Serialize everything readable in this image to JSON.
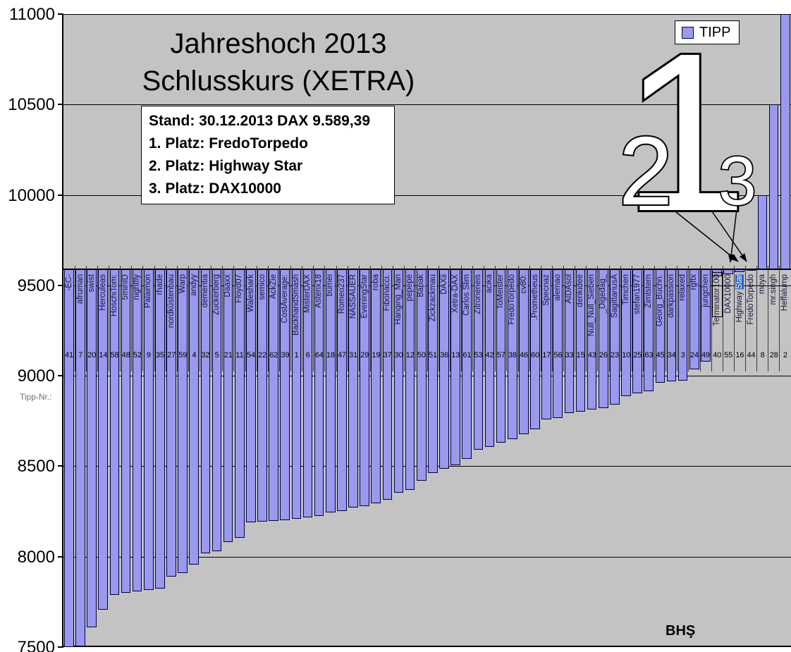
{
  "title": {
    "line1": "Jahreshoch 2013",
    "line2": "Schlusskurs (XETRA)"
  },
  "info_box": {
    "stand": "Stand: 30.12.2013 DAX 9.589,39",
    "platz1": "1. Platz: FredoTorpedo",
    "platz2": "2. Platz: Highway Star",
    "platz3": "3. Platz: DAX10000"
  },
  "legend": {
    "label": "TIPP"
  },
  "left_axis_note": "Tipp-Nr.:",
  "signature": "BHŞ",
  "overlay": {
    "rank1": "1",
    "rank2": "2",
    "rank3": "3"
  },
  "colors": {
    "plot_bg": "#C3C3C3",
    "bar_fill": "#9999EE",
    "bar_border": "#000040",
    "selection_blue": "#3163C5"
  },
  "chart_data": {
    "type": "bar",
    "title": "Jahreshoch 2013 Schlusskurs (XETRA)",
    "ylabel": "",
    "xlabel": "Tipp-Nr.:",
    "ylim": [
      7500,
      11000
    ],
    "yticks": [
      7500,
      8000,
      8500,
      9000,
      9500,
      10000,
      10500,
      11000
    ],
    "baseline_value": 9589.39,
    "grid": "horizontal",
    "legend_entries": [
      "TIPP"
    ],
    "legend_position": "top-right",
    "value_note": "values estimated from bar ends; bars hang from the 9589.39 axis crossing",
    "bars": [
      {
        "label": "-EC-",
        "tipp_nr": 41,
        "value": 7500
      },
      {
        "label": "afruman",
        "tipp_nr": 7,
        "value": 7505
      },
      {
        "label": "swist",
        "tipp_nr": 20,
        "value": 7610
      },
      {
        "label": "Herculeas",
        "tipp_nr": 14,
        "value": 7705
      },
      {
        "label": "HoschiTom:",
        "tipp_nr": 58,
        "value": 7790
      },
      {
        "label": "5minID",
        "tipp_nr": 48,
        "value": 7800
      },
      {
        "label": "nightfly",
        "tipp_nr": 52,
        "value": 7808
      },
      {
        "label": "Palaimon",
        "tipp_nr": 9,
        "value": 7815
      },
      {
        "label": "rhade",
        "tipp_nr": 35,
        "value": 7822
      },
      {
        "label": "nordküstenbau",
        "tipp_nr": 27,
        "value": 7890
      },
      {
        "label": "Warp",
        "tipp_nr": 59,
        "value": 7910
      },
      {
        "label": "andyy",
        "tipp_nr": 4,
        "value": 7955
      },
      {
        "label": "dementia",
        "tipp_nr": 32,
        "value": 8020
      },
      {
        "label": "Zuckerberg",
        "tipp_nr": 5,
        "value": 8032
      },
      {
        "label": "Daaxx",
        "tipp_nr": 21,
        "value": 8080
      },
      {
        "label": "Floyd07",
        "tipp_nr": 11,
        "value": 8105
      },
      {
        "label": "Waleshark",
        "tipp_nr": 54,
        "value": 8188
      },
      {
        "label": "semico",
        "tipp_nr": 22,
        "value": 8193
      },
      {
        "label": "AckZie",
        "tipp_nr": 62,
        "value": 8198
      },
      {
        "label": "CostAverage:",
        "tipp_nr": 39,
        "value": 8202
      },
      {
        "label": "BackhandSmash",
        "tipp_nr": 1,
        "value": 8210
      },
      {
        "label": "MisterDAX",
        "tipp_nr": 6,
        "value": 8218
      },
      {
        "label": "Asterix18",
        "tipp_nr": 64,
        "value": 8225
      },
      {
        "label": "bümei",
        "tipp_nr": 18,
        "value": 8244
      },
      {
        "label": "Romeo237",
        "tipp_nr": 47,
        "value": 8252
      },
      {
        "label": "NASSAUER",
        "tipp_nr": 31,
        "value": 8271
      },
      {
        "label": "EveningStar",
        "tipp_nr": 29,
        "value": 8280
      },
      {
        "label": "roba",
        "tipp_nr": 19,
        "value": 8295
      },
      {
        "label": "Fibonacci.",
        "tipp_nr": 37,
        "value": 8315
      },
      {
        "label": "Hanging_Man",
        "tipp_nr": 30,
        "value": 8354
      },
      {
        "label": "pepepe",
        "tipp_nr": 12,
        "value": 8369
      },
      {
        "label": "Bapak",
        "tipp_nr": 50,
        "value": 8420
      },
      {
        "label": "Zickzackmau",
        "tipp_nr": 51,
        "value": 8461
      },
      {
        "label": "DAXii",
        "tipp_nr": 36,
        "value": 8488
      },
      {
        "label": "Xetra-DAX",
        "tipp_nr": 13,
        "value": 8504
      },
      {
        "label": "Carlos Slim",
        "tipp_nr": 61,
        "value": 8539
      },
      {
        "label": "Zitroneneis",
        "tipp_nr": 53,
        "value": 8590
      },
      {
        "label": "acika",
        "tipp_nr": 42,
        "value": 8605
      },
      {
        "label": "ToMeister",
        "tipp_nr": 57,
        "value": 8629
      },
      {
        "label": "FredoTorpedo",
        "tipp_nr": 38,
        "value": 8648
      },
      {
        "label": "cv80:",
        "tipp_nr": 46,
        "value": 8676
      },
      {
        "label": ".Prometheus",
        "tipp_nr": 60,
        "value": 8703
      },
      {
        "label": "Specnaz",
        "tipp_nr": 17,
        "value": 8760
      },
      {
        "label": "alemao",
        "tipp_nr": 56,
        "value": 8766
      },
      {
        "label": "AIDAsol",
        "tipp_nr": 33,
        "value": 8793
      },
      {
        "label": "denkidee",
        "tipp_nr": 15,
        "value": 8801
      },
      {
        "label": "Null_Null_Sieben",
        "tipp_nr": 43,
        "value": 8813
      },
      {
        "label": "_Digedag_",
        "tipp_nr": 26,
        "value": 8820
      },
      {
        "label": "SagittariusA",
        "tipp_nr": 23,
        "value": 8840
      },
      {
        "label": "Timchen",
        "tipp_nr": 10,
        "value": 8888
      },
      {
        "label": "stefan1977",
        "tipp_nr": 25,
        "value": 8905
      },
      {
        "label": "Zimtstern",
        "tipp_nr": 63,
        "value": 8915
      },
      {
        "label": "Georg_Büchn.",
        "tipp_nr": 45,
        "value": 8960
      },
      {
        "label": "darkpassion",
        "tipp_nr": 34,
        "value": 8969
      },
      {
        "label": "relaxed",
        "tipp_nr": 3,
        "value": 8973
      },
      {
        "label": "rgftx",
        "tipp_nr": 24,
        "value": 9035
      },
      {
        "label": "jungchen",
        "tipp_nr": 49,
        "value": 9080
      },
      {
        "label": "Terminator100",
        "tipp_nr": 40,
        "value": 9550,
        "boxed": true
      },
      {
        "label": "DAX10000",
        "tipp_nr": 55,
        "value": 9560
      },
      {
        "label": "Highway Star",
        "tipp_nr": 16,
        "value": 9575,
        "selected_text": "Star"
      },
      {
        "label": "FredoTorpedo",
        "tipp_nr": 44,
        "value": 9585
      },
      {
        "label": "moya",
        "tipp_nr": 8,
        "value": 10000
      },
      {
        "label": "mr.singh",
        "tipp_nr": 28,
        "value": 10500
      },
      {
        "label": "Heffalump",
        "tipp_nr": 2,
        "value": 11000
      }
    ]
  }
}
